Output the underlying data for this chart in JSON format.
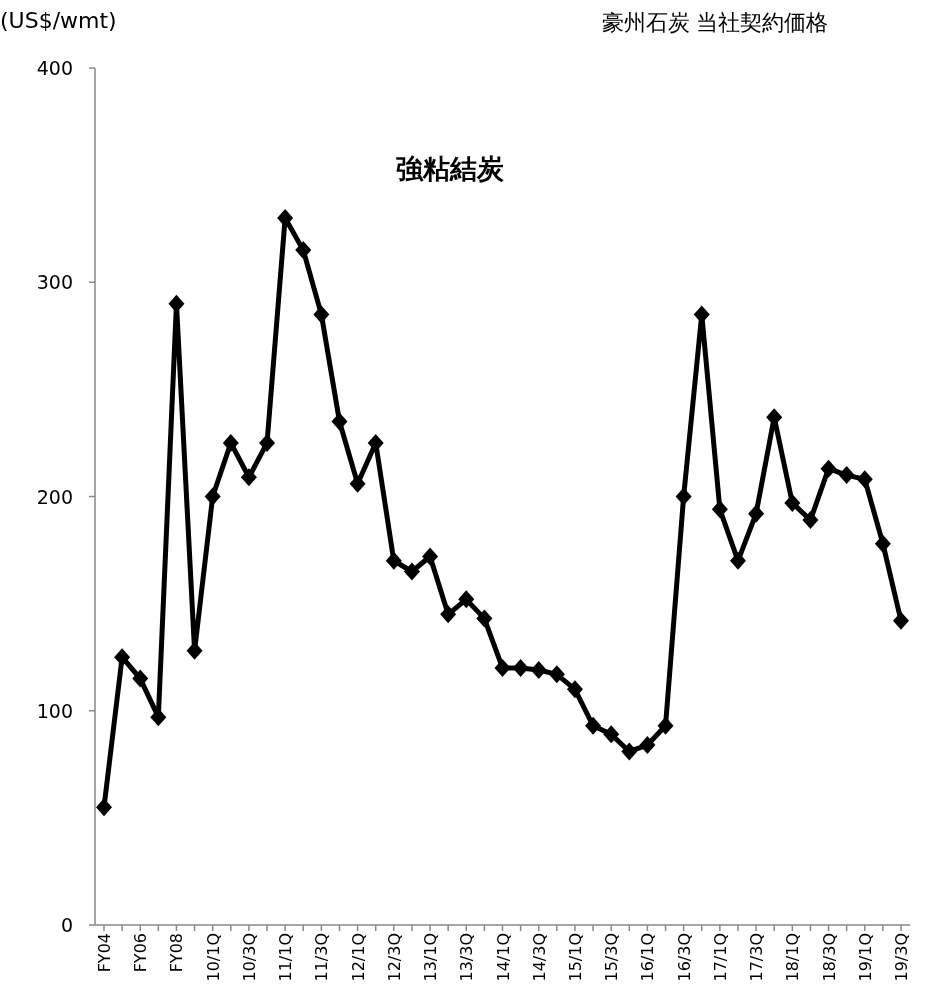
{
  "chart_data": {
    "type": "line",
    "title": "豪州石炭 当社契約価格",
    "subtitle": "強粘結炭",
    "ylabel": "(US$/wmt)",
    "categories": [
      "FY04",
      null,
      "FY06",
      null,
      "FY08",
      null,
      "10/1Q",
      null,
      "10/3Q",
      null,
      "11/1Q",
      null,
      "11/3Q",
      null,
      "12/1Q",
      null,
      "12/3Q",
      null,
      "13/1Q",
      null,
      "13/3Q",
      null,
      "14/1Q",
      null,
      "14/3Q",
      null,
      "15/1Q",
      null,
      "15/3Q",
      null,
      "16/1Q",
      null,
      "16/3Q",
      null,
      "17/1Q",
      null,
      "17/3Q",
      null,
      "18/1Q",
      null,
      "18/3Q",
      null,
      "19/1Q",
      null,
      "19/3Q"
    ],
    "series": [
      {
        "color": "#000000",
        "values": [
          55,
          125,
          115,
          97,
          290,
          128,
          200,
          225,
          209,
          225,
          330,
          315,
          285,
          235,
          206,
          225,
          170,
          165,
          172,
          145,
          152,
          143,
          120,
          120,
          119,
          117,
          110,
          93,
          89,
          81,
          84,
          93,
          200,
          285,
          194,
          170,
          192,
          237,
          197,
          189,
          213,
          210,
          208,
          178,
          142
        ]
      }
    ],
    "ylim": [
      0,
      400
    ],
    "yticks": [
      0,
      100,
      200,
      300,
      400
    ],
    "grid": false,
    "marker": "diamond",
    "line_style": "solid"
  }
}
